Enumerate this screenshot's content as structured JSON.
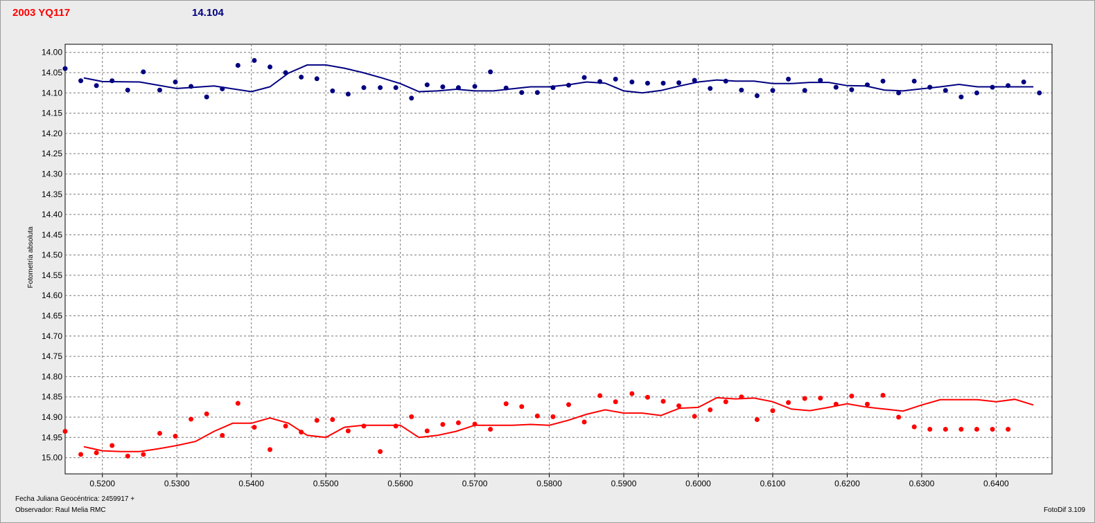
{
  "header": {
    "object_name": "2003 YQ117",
    "comparison_value": "14.104"
  },
  "footer": {
    "date_label": "Fecha Juliana Geocéntrica: 2459917 +",
    "observer_label": "Observador: Raul Melia RMC",
    "software_label": "FotoDif 3.109"
  },
  "chart_data": {
    "type": "scatter",
    "title": "",
    "xlabel": "",
    "ylabel": "Fotometría absoluta",
    "xlim": [
      0.515,
      0.6475
    ],
    "ylim": [
      15.04,
      13.98
    ],
    "y_inverted": true,
    "grid": true,
    "x_ticks": [
      "0.5200",
      "0.5300",
      "0.5400",
      "0.5500",
      "0.5600",
      "0.5700",
      "0.5800",
      "0.5900",
      "0.6000",
      "0.6100",
      "0.6200",
      "0.6300",
      "0.6400"
    ],
    "y_ticks": [
      "14.00",
      "14.05",
      "14.10",
      "14.15",
      "14.20",
      "14.25",
      "14.30",
      "14.35",
      "14.40",
      "14.45",
      "14.50",
      "14.55",
      "14.60",
      "14.65",
      "14.70",
      "14.75",
      "14.80",
      "14.85",
      "14.90",
      "14.95",
      "15.00"
    ],
    "series": [
      {
        "color": "#000080",
        "points_x": [
          0.515,
          0.5171,
          0.5192,
          0.5213,
          0.5234,
          0.5255,
          0.5277,
          0.5298,
          0.5319,
          0.534,
          0.5361,
          0.5382,
          0.5404,
          0.5425,
          0.5446,
          0.5467,
          0.5488,
          0.5509,
          0.553,
          0.5551,
          0.5573,
          0.5594,
          0.5615,
          0.5636,
          0.5657,
          0.5678,
          0.57,
          0.5721,
          0.5742,
          0.5763,
          0.5784,
          0.5805,
          0.5826,
          0.5847,
          0.5868,
          0.5889,
          0.5911,
          0.5932,
          0.5953,
          0.5974,
          0.5995,
          0.6016,
          0.6037,
          0.6058,
          0.6079,
          0.61,
          0.6121,
          0.6143,
          0.6164,
          0.6185,
          0.6206,
          0.6227,
          0.6248,
          0.6269,
          0.629,
          0.6311,
          0.6332,
          0.6353,
          0.6374,
          0.6395,
          0.6416,
          0.6437,
          0.6458
        ],
        "points_y": [
          14.04,
          14.07,
          14.082,
          14.07,
          14.093,
          14.048,
          14.093,
          14.073,
          14.084,
          14.11,
          14.09,
          14.032,
          14.02,
          14.036,
          14.05,
          14.061,
          14.065,
          14.095,
          14.103,
          14.087,
          14.087,
          14.087,
          14.113,
          14.08,
          14.085,
          14.087,
          14.084,
          14.048,
          14.088,
          14.099,
          14.099,
          14.087,
          14.081,
          14.062,
          14.072,
          14.066,
          14.073,
          14.076,
          14.076,
          14.075,
          14.069,
          14.089,
          14.071,
          14.093,
          14.107,
          14.094,
          14.066,
          14.094,
          14.069,
          14.086,
          14.092,
          14.08,
          14.071,
          14.1,
          14.071,
          14.086,
          14.094,
          14.11,
          14.1,
          14.086,
          14.082,
          14.073,
          14.1
        ],
        "fit_x": [
          0.5175,
          0.52,
          0.525,
          0.53,
          0.535,
          0.54,
          0.5425,
          0.545,
          0.5475,
          0.55,
          0.5525,
          0.555,
          0.5575,
          0.56,
          0.5625,
          0.565,
          0.5675,
          0.57,
          0.5725,
          0.575,
          0.5775,
          0.58,
          0.5825,
          0.585,
          0.5875,
          0.59,
          0.5925,
          0.595,
          0.5975,
          0.6,
          0.6025,
          0.605,
          0.6075,
          0.61,
          0.6125,
          0.615,
          0.6175,
          0.62,
          0.6225,
          0.625,
          0.6275,
          0.63,
          0.6325,
          0.635,
          0.6375,
          0.64,
          0.6425,
          0.645
        ],
        "fit_y": [
          14.063,
          14.072,
          14.073,
          14.089,
          14.083,
          14.097,
          14.085,
          14.051,
          14.031,
          14.031,
          14.039,
          14.05,
          14.063,
          14.077,
          14.097,
          14.095,
          14.091,
          14.095,
          14.095,
          14.09,
          14.085,
          14.085,
          14.08,
          14.073,
          14.076,
          14.095,
          14.1,
          14.094,
          14.083,
          14.073,
          14.068,
          14.071,
          14.071,
          14.077,
          14.077,
          14.074,
          14.074,
          14.082,
          14.083,
          14.093,
          14.095,
          14.09,
          14.085,
          14.079,
          14.085,
          14.085,
          14.085,
          14.085
        ]
      },
      {
        "color": "#ff0000",
        "points_x": [
          0.515,
          0.5171,
          0.5192,
          0.5213,
          0.5234,
          0.5255,
          0.5277,
          0.5298,
          0.5319,
          0.534,
          0.5361,
          0.5382,
          0.5404,
          0.5425,
          0.5446,
          0.5467,
          0.5488,
          0.5509,
          0.553,
          0.5551,
          0.5573,
          0.5594,
          0.5615,
          0.5636,
          0.5657,
          0.5678,
          0.57,
          0.5721,
          0.5742,
          0.5763,
          0.5784,
          0.5805,
          0.5826,
          0.5847,
          0.5868,
          0.5889,
          0.5911,
          0.5932,
          0.5953,
          0.5974,
          0.5995,
          0.6016,
          0.6037,
          0.6058,
          0.6079,
          0.61,
          0.6121,
          0.6143,
          0.6164,
          0.6185,
          0.6206,
          0.6227,
          0.6248,
          0.6269,
          0.629,
          0.6311,
          0.6332,
          0.6353,
          0.6374,
          0.6395,
          0.6416,
          0.6437,
          0.6458
        ],
        "points_y": [
          14.935,
          14.992,
          14.988,
          14.97,
          14.996,
          14.992,
          14.94,
          14.947,
          14.905,
          14.892,
          14.945,
          14.866,
          14.925,
          14.98,
          14.922,
          14.937,
          14.908,
          14.906,
          14.934,
          14.922,
          14.985,
          14.922,
          14.899,
          14.934,
          14.918,
          14.914,
          14.917,
          14.93,
          14.867,
          14.874,
          14.897,
          14.899,
          14.869,
          14.912,
          14.847,
          14.862,
          14.842,
          14.851,
          14.861,
          14.872,
          14.898,
          14.882,
          14.862,
          14.85,
          14.906,
          14.884,
          14.864,
          14.854,
          14.853,
          14.868,
          14.848,
          14.868,
          14.846,
          14.9,
          14.924,
          14.93,
          14.93,
          14.93,
          14.93,
          14.93,
          14.93,
          14.93,
          14.93
        ],
        "fit_x": [
          0.5175,
          0.52,
          0.5225,
          0.525,
          0.5275,
          0.53,
          0.5325,
          0.535,
          0.5375,
          0.54,
          0.5425,
          0.545,
          0.5475,
          0.55,
          0.5525,
          0.555,
          0.5575,
          0.56,
          0.5625,
          0.565,
          0.5675,
          0.57,
          0.5725,
          0.575,
          0.5775,
          0.58,
          0.5825,
          0.585,
          0.5875,
          0.59,
          0.5925,
          0.595,
          0.5975,
          0.6,
          0.6025,
          0.605,
          0.6075,
          0.61,
          0.6125,
          0.615,
          0.6175,
          0.62,
          0.6225,
          0.625,
          0.6275,
          0.63,
          0.6325,
          0.635,
          0.6375,
          0.64,
          0.6425,
          0.645
        ],
        "fit_y": [
          14.973,
          14.983,
          14.985,
          14.985,
          14.978,
          14.97,
          14.96,
          14.935,
          14.915,
          14.915,
          14.902,
          14.915,
          14.945,
          14.95,
          14.925,
          14.92,
          14.92,
          14.92,
          14.95,
          14.945,
          14.935,
          14.92,
          14.92,
          14.92,
          14.918,
          14.92,
          14.908,
          14.893,
          14.882,
          14.89,
          14.89,
          14.896,
          14.878,
          14.876,
          14.852,
          14.855,
          14.853,
          14.862,
          14.88,
          14.884,
          14.876,
          14.867,
          14.875,
          14.88,
          14.885,
          14.87,
          14.857,
          14.857,
          14.857,
          14.862,
          14.856,
          14.87
        ]
      }
    ]
  }
}
